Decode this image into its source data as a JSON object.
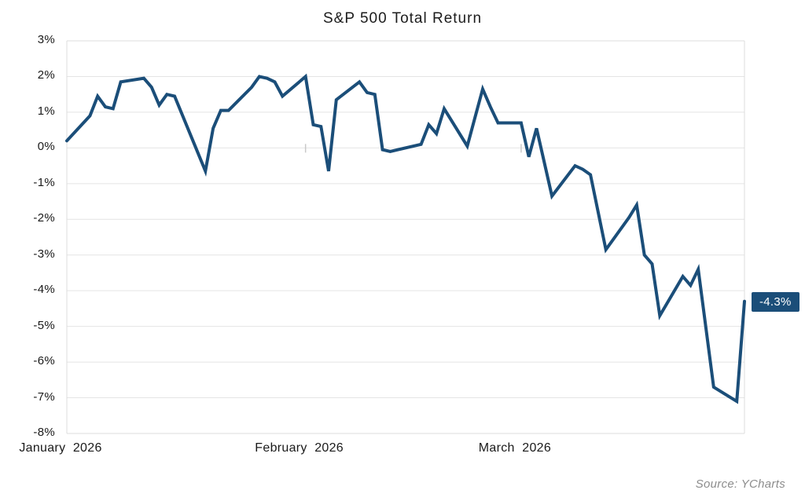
{
  "chart": {
    "title": "S&P 500 Total Return",
    "source": "Source: YCharts",
    "last_value_label": "-4.3%"
  },
  "colors": {
    "line": "#1b4e79",
    "badge_bg": "#1b4e79",
    "badge_text": "#ffffff",
    "grid": "#e4e4e4",
    "border": "#dddddd",
    "tick": "#c9c9c9",
    "label_text": "#1a1a1a",
    "source_text": "#8c8c8c"
  },
  "chart_data": {
    "type": "line",
    "title": "S&P 500 Total Return",
    "xlabel": "",
    "ylabel": "",
    "grid": true,
    "legend": false,
    "ylim": [
      -8,
      3
    ],
    "y_tick_step": 1,
    "y_tick_labels": [
      "3%",
      "2%",
      "1%",
      "0%",
      "-1%",
      "-2%",
      "-3%",
      "-4%",
      "-5%",
      "-6%",
      "-7%",
      "-8%"
    ],
    "x_range": [
      "2026-01-02",
      "2026-03-31"
    ],
    "x_month_labels": [
      {
        "label": "January  2026",
        "date": "2026-01-02"
      },
      {
        "label": "February  2026",
        "date": "2026-02-02"
      },
      {
        "label": "March  2026",
        "date": "2026-03-02"
      }
    ],
    "zero_ticks": [
      "2026-02-02",
      "2026-03-02"
    ],
    "end_label": "-4.3%",
    "series": [
      {
        "name": "S&P 500 Total Return",
        "unit": "%",
        "points": [
          [
            "2026-01-02",
            0.2
          ],
          [
            "2026-01-05",
            0.9
          ],
          [
            "2026-01-06",
            1.45
          ],
          [
            "2026-01-07",
            1.15
          ],
          [
            "2026-01-08",
            1.1
          ],
          [
            "2026-01-09",
            1.85
          ],
          [
            "2026-01-12",
            1.95
          ],
          [
            "2026-01-13",
            1.7
          ],
          [
            "2026-01-14",
            1.2
          ],
          [
            "2026-01-15",
            1.5
          ],
          [
            "2026-01-16",
            1.45
          ],
          [
            "2026-01-20",
            -0.65
          ],
          [
            "2026-01-21",
            0.55
          ],
          [
            "2026-01-22",
            1.05
          ],
          [
            "2026-01-23",
            1.05
          ],
          [
            "2026-01-26",
            1.7
          ],
          [
            "2026-01-27",
            2.0
          ],
          [
            "2026-01-28",
            1.95
          ],
          [
            "2026-01-29",
            1.85
          ],
          [
            "2026-01-30",
            1.45
          ],
          [
            "2026-02-02",
            2.0
          ],
          [
            "2026-02-03",
            0.65
          ],
          [
            "2026-02-04",
            0.6
          ],
          [
            "2026-02-05",
            -0.65
          ],
          [
            "2026-02-06",
            1.35
          ],
          [
            "2026-02-09",
            1.85
          ],
          [
            "2026-02-10",
            1.55
          ],
          [
            "2026-02-11",
            1.5
          ],
          [
            "2026-02-12",
            -0.05
          ],
          [
            "2026-02-13",
            -0.1
          ],
          [
            "2026-02-17",
            0.1
          ],
          [
            "2026-02-18",
            0.65
          ],
          [
            "2026-02-19",
            0.4
          ],
          [
            "2026-02-20",
            1.1
          ],
          [
            "2026-02-23",
            0.05
          ],
          [
            "2026-02-24",
            0.85
          ],
          [
            "2026-02-25",
            1.65
          ],
          [
            "2026-02-26",
            1.15
          ],
          [
            "2026-02-27",
            0.7
          ],
          [
            "2026-03-02",
            0.7
          ],
          [
            "2026-03-03",
            -0.25
          ],
          [
            "2026-03-04",
            0.55
          ],
          [
            "2026-03-05",
            -0.4
          ],
          [
            "2026-03-06",
            -1.35
          ],
          [
            "2026-03-09",
            -0.5
          ],
          [
            "2026-03-10",
            -0.6
          ],
          [
            "2026-03-11",
            -0.75
          ],
          [
            "2026-03-12",
            -1.8
          ],
          [
            "2026-03-13",
            -2.85
          ],
          [
            "2026-03-16",
            -1.95
          ],
          [
            "2026-03-17",
            -1.6
          ],
          [
            "2026-03-18",
            -3.0
          ],
          [
            "2026-03-19",
            -3.25
          ],
          [
            "2026-03-20",
            -4.7
          ],
          [
            "2026-03-23",
            -3.6
          ],
          [
            "2026-03-24",
            -3.85
          ],
          [
            "2026-03-25",
            -3.4
          ],
          [
            "2026-03-26",
            -5.05
          ],
          [
            "2026-03-27",
            -6.7
          ],
          [
            "2026-03-30",
            -7.1
          ],
          [
            "2026-03-31",
            -4.3
          ]
        ]
      }
    ]
  }
}
